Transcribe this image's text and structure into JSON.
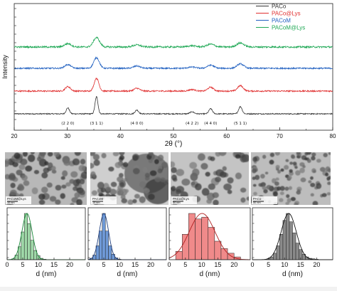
{
  "colors": {
    "PACo": "#333333",
    "PACo@Lys": "#e03030",
    "PACoM": "#1f5fc0",
    "PACoM@Lys": "#1fa855",
    "hist_green": "#9fd8a8",
    "hist_blue": "#6f9ad8",
    "hist_red": "#f08a8a",
    "hist_gray": "#8a8a8a"
  },
  "chart_data": [
    {
      "type": "line",
      "xlabel": "2θ (°)",
      "ylabel": "Intensity",
      "xlim": [
        20,
        80
      ],
      "xticks": [
        20,
        30,
        40,
        50,
        60,
        70,
        80
      ],
      "grid": false,
      "legend": "top-right",
      "peaks": [
        {
          "pos": 30.1,
          "height": 0.35,
          "width": 0.55,
          "label": "(2 2 0)"
        },
        {
          "pos": 35.5,
          "height": 1.0,
          "width": 0.5,
          "label": "(3 1 1)"
        },
        {
          "pos": 43.1,
          "height": 0.22,
          "width": 0.6,
          "label": "(4 0 0)"
        },
        {
          "pos": 53.5,
          "height": 0.12,
          "width": 0.7,
          "label": "(4 2 2)"
        },
        {
          "pos": 57.0,
          "height": 0.3,
          "width": 0.6,
          "label": "(4 4 0)"
        },
        {
          "pos": 62.6,
          "height": 0.42,
          "width": 0.6,
          "label": "(5 1 1)"
        }
      ],
      "series": [
        {
          "name": "PACo",
          "color": "#333333",
          "offset": 0,
          "peak_scale": 1.0,
          "broadening": 1.0,
          "noise": 0.03
        },
        {
          "name": "PACo@Lys",
          "color": "#e03030",
          "offset": 1,
          "peak_scale": 0.75,
          "broadening": 1.6,
          "noise": 0.04
        },
        {
          "name": "PACoM",
          "color": "#1f5fc0",
          "offset": 2,
          "peak_scale": 0.62,
          "broadening": 1.9,
          "noise": 0.04
        },
        {
          "name": "PACoM@Lys",
          "color": "#1fa855",
          "offset": 3,
          "peak_scale": 0.55,
          "broadening": 2.1,
          "noise": 0.05
        }
      ]
    },
    {
      "type": "bar",
      "xlabel": "d (nm)",
      "ylabel": "",
      "xlim": [
        0,
        25
      ],
      "xticks": [
        0,
        5,
        10,
        15,
        20
      ],
      "bin_width": 1,
      "color": "#9fd8a8",
      "fit_color": "#1a8a3a",
      "bins": [
        2,
        3,
        4,
        5,
        6,
        7,
        8,
        9,
        10,
        11,
        12
      ],
      "counts": [
        2,
        10,
        28,
        60,
        100,
        78,
        42,
        20,
        9,
        3,
        1
      ]
    },
    {
      "type": "bar",
      "xlabel": "d (nm)",
      "ylabel": "",
      "xlim": [
        0,
        25
      ],
      "xticks": [
        0,
        5,
        10,
        15,
        20
      ],
      "bin_width": 1,
      "color": "#6f9ad8",
      "fit_color": "#1f3f80",
      "bins": [
        1,
        2,
        3,
        4,
        5,
        6,
        7,
        8,
        9,
        10
      ],
      "counts": [
        3,
        10,
        30,
        62,
        100,
        62,
        30,
        12,
        4,
        1
      ]
    },
    {
      "type": "bar",
      "xlabel": "d (nm)",
      "ylabel": "",
      "xlim": [
        0,
        25
      ],
      "xticks": [
        0,
        5,
        10,
        15,
        20
      ],
      "bin_width": 2,
      "color": "#f08a8a",
      "fit_color": "#b02020",
      "bins": [
        3,
        5,
        7,
        9,
        11,
        13,
        15,
        17,
        19,
        21
      ],
      "counts": [
        18,
        55,
        100,
        88,
        92,
        70,
        40,
        24,
        14,
        6
      ]
    },
    {
      "type": "bar",
      "xlabel": "d (nm)",
      "ylabel": "",
      "xlim": [
        0,
        25
      ],
      "xticks": [
        0,
        5,
        10,
        15,
        20
      ],
      "bin_width": 1,
      "color": "#8a8a8a",
      "fit_color": "#111111",
      "bins": [
        5,
        6,
        7,
        8,
        9,
        10,
        11,
        12,
        13,
        14,
        15,
        16,
        17,
        18,
        19,
        20
      ],
      "counts": [
        2,
        6,
        14,
        30,
        55,
        85,
        100,
        82,
        58,
        36,
        22,
        12,
        6,
        3,
        2,
        1
      ]
    }
  ],
  "tem_panels": [
    {
      "label": "PACoM@Lys",
      "scale": "10 nm"
    },
    {
      "label": "PACoM",
      "scale": "10 nm"
    },
    {
      "label": "PACo@Lys",
      "scale": "50 nm"
    },
    {
      "label": "PACo",
      "scale": "50 nm"
    }
  ]
}
